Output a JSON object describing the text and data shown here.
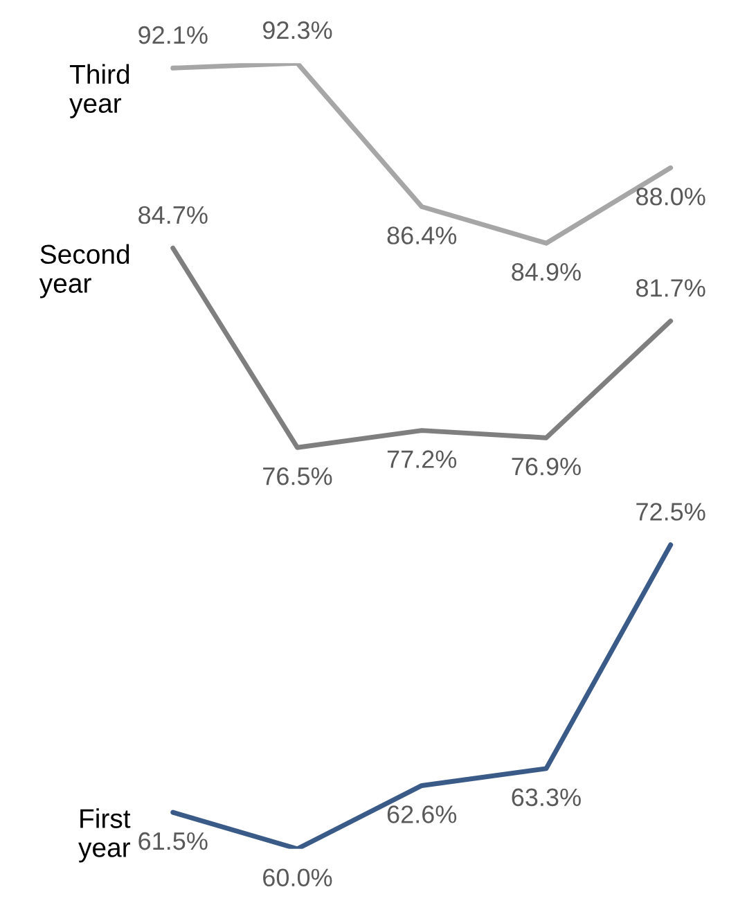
{
  "chart_data": {
    "type": "line",
    "categories": [
      null,
      null,
      null,
      null,
      null
    ],
    "series": [
      {
        "name": "Third year",
        "color": "#a6a6a6",
        "values": [
          92.1,
          92.3,
          86.4,
          84.9,
          88.0
        ],
        "value_labels": [
          "92.1%",
          "92.3%",
          "86.4%",
          "84.9%",
          "88.0%"
        ]
      },
      {
        "name": "Second year",
        "color": "#7f7f7f",
        "values": [
          84.7,
          76.5,
          77.2,
          76.9,
          81.7
        ],
        "value_labels": [
          "84.7%",
          "76.5%",
          "77.2%",
          "76.9%",
          "81.7%"
        ]
      },
      {
        "name": "First year",
        "color": "#3a5b87",
        "values": [
          61.5,
          60.0,
          62.6,
          63.3,
          72.5
        ],
        "value_labels": [
          "61.5%",
          "60.0%",
          "62.6%",
          "63.3%",
          "72.5%"
        ]
      }
    ],
    "marker": "none",
    "line_style": "solid"
  }
}
